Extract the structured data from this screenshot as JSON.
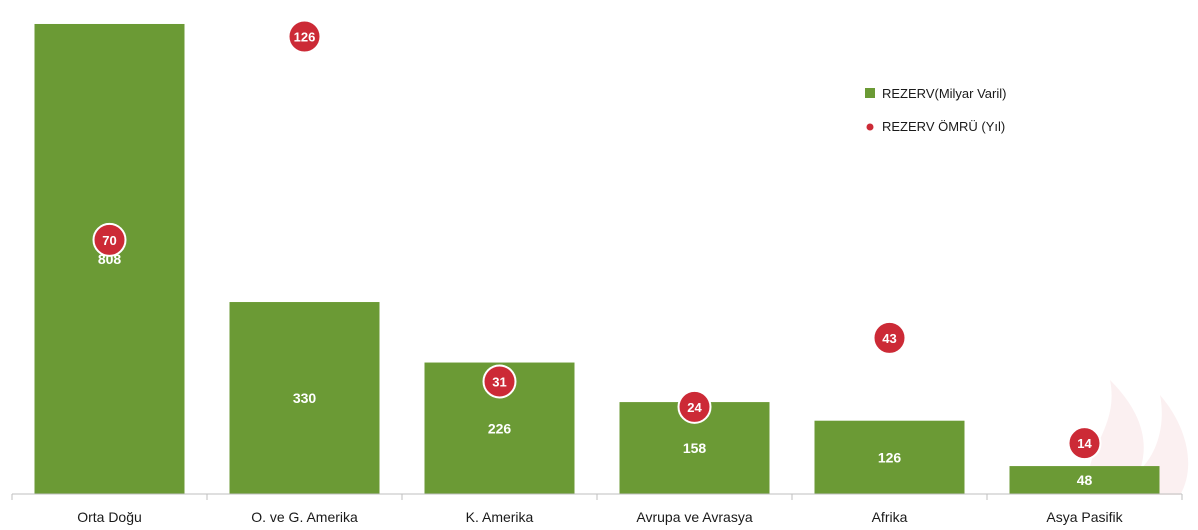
{
  "chart_data": {
    "type": "bar",
    "categories": [
      "Orta Doğu",
      "O. ve G.  Amerika",
      "K. Amerika",
      "Avrupa ve Avrasya",
      "Afrika",
      "Asya Pasifik"
    ],
    "series": [
      {
        "name": "REZERV(Milyar Varil)",
        "type": "bar",
        "values": [
          808,
          330,
          226,
          158,
          126,
          48
        ]
      },
      {
        "name": "REZERV ÖMRÜ (Yıl)",
        "type": "scatter",
        "values": [
          70,
          126,
          31,
          24,
          43,
          14
        ]
      }
    ],
    "ylim": [
      0,
      820
    ],
    "y2lim": [
      0,
      130
    ],
    "grid": false,
    "legend_position": "top-right",
    "colors": {
      "bar": "#6b9a35",
      "dot": "#cc2a36",
      "dot_outline": "#ffffff",
      "axis": "#bfbfbf"
    }
  }
}
